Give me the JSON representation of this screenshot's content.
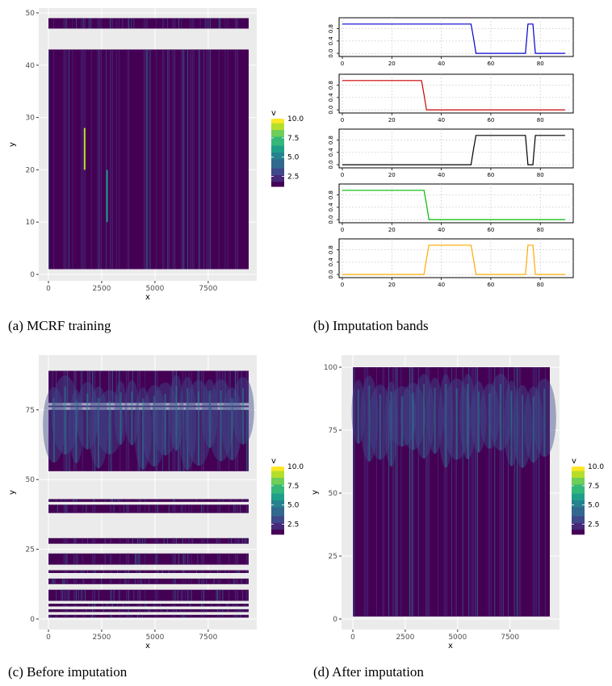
{
  "captions": {
    "a": "(a) MCRF training",
    "b": "(b) Imputation bands",
    "c": "(c) Before imputation",
    "d": "(d) After imputation"
  },
  "colors": {
    "viridis": [
      "#440154",
      "#482878",
      "#3e4989",
      "#31688e",
      "#26828e",
      "#1f9e89",
      "#35b779",
      "#6ece58",
      "#b5de2b",
      "#fde725"
    ],
    "panel_bg": "#ebebeb",
    "band_colors": [
      "#0000cc",
      "#cc0000",
      "#000000",
      "#00bb00",
      "#ffaa00"
    ]
  },
  "chart_data": [
    {
      "id": "a",
      "type": "heatmap",
      "xlabel": "x",
      "ylabel": "y",
      "xlim": [
        0,
        9400
      ],
      "ylim": [
        0,
        50
      ],
      "x_ticks": [
        0,
        2500,
        5000,
        7500
      ],
      "x_tick_labels": [
        "0",
        "2500",
        "5000",
        "7500"
      ],
      "y_ticks": [
        0,
        10,
        20,
        30,
        40,
        50
      ],
      "y_tick_labels": [
        "0",
        "10",
        "20",
        "30",
        "40",
        "50"
      ],
      "y_bands": [
        [
          1,
          43
        ],
        [
          47,
          49
        ]
      ],
      "hotspots": [
        {
          "x": 1700,
          "y0": 20,
          "y1": 28,
          "v": 9.5
        },
        {
          "x": 2750,
          "y0": 10,
          "y1": 20,
          "v": 6
        }
      ],
      "legend": {
        "title": "v",
        "labels": [
          "10.0",
          "7.5",
          "5.0",
          "2.5"
        ],
        "values": [
          10,
          7.5,
          5,
          2.5
        ],
        "range": [
          1.2,
          10
        ]
      }
    },
    {
      "id": "b",
      "type": "line",
      "xlim": [
        -2,
        92
      ],
      "x_ticks": [
        0,
        20,
        40,
        60,
        80
      ],
      "x_tick_labels": [
        "0",
        "20",
        "40",
        "60",
        "80"
      ],
      "y_ticks": [
        0,
        0.4,
        0.8
      ],
      "y_tick_labels": [
        "0.0",
        "0.4",
        "0.8"
      ],
      "ylim": [
        -0.05,
        1.05
      ],
      "series": [
        {
          "values": [
            [
              0,
              0.95
            ],
            [
              52,
              0.95
            ],
            [
              53,
              0.5
            ],
            [
              54,
              0
            ],
            [
              74,
              0
            ],
            [
              75,
              0.95
            ],
            [
              77,
              0.95
            ],
            [
              78,
              0
            ],
            [
              90,
              0
            ]
          ]
        },
        {
          "values": [
            [
              0,
              0.95
            ],
            [
              32,
              0.95
            ],
            [
              33,
              0.5
            ],
            [
              34,
              0
            ],
            [
              90,
              0
            ]
          ]
        },
        {
          "values": [
            [
              0,
              0
            ],
            [
              52,
              0
            ],
            [
              53,
              0.5
            ],
            [
              54,
              0.95
            ],
            [
              74,
              0.95
            ],
            [
              75,
              0
            ],
            [
              77,
              0
            ],
            [
              78,
              0.95
            ],
            [
              90,
              0.95
            ]
          ]
        },
        {
          "values": [
            [
              0,
              0.95
            ],
            [
              33,
              0.95
            ],
            [
              34,
              0.5
            ],
            [
              35,
              0
            ],
            [
              90,
              0
            ]
          ]
        },
        {
          "values": [
            [
              0,
              0
            ],
            [
              33,
              0
            ],
            [
              34,
              0.5
            ],
            [
              35,
              0.95
            ],
            [
              52,
              0.95
            ],
            [
              53,
              0.5
            ],
            [
              54,
              0
            ],
            [
              74,
              0
            ],
            [
              75,
              0.95
            ],
            [
              77,
              0.95
            ],
            [
              78,
              0
            ],
            [
              90,
              0
            ]
          ]
        }
      ]
    },
    {
      "id": "c",
      "type": "heatmap",
      "xlabel": "x",
      "ylabel": "y",
      "xlim": [
        0,
        9400
      ],
      "ylim": [
        0,
        90
      ],
      "x_ticks": [
        0,
        2500,
        5000,
        7500
      ],
      "x_tick_labels": [
        "0",
        "2500",
        "5000",
        "7500"
      ],
      "y_ticks": [
        0,
        25,
        50,
        75
      ],
      "y_tick_labels": [
        "0",
        "25",
        "50",
        "75"
      ],
      "y_bands": [
        [
          0.5,
          1.5
        ],
        [
          2.5,
          3.5
        ],
        [
          4.5,
          5.5
        ],
        [
          6.5,
          10.5
        ],
        [
          12.5,
          14.5
        ],
        [
          16.5,
          17.5
        ],
        [
          19.5,
          23.5
        ],
        [
          27,
          29
        ],
        [
          38,
          41
        ],
        [
          42,
          43
        ],
        [
          53,
          75
        ],
        [
          76,
          76.5
        ],
        [
          77.5,
          89
        ]
      ],
      "legend": {
        "title": "v",
        "labels": [
          "10.0",
          "7.5",
          "5.0",
          "2.5"
        ],
        "values": [
          10,
          7.5,
          5,
          2.5
        ],
        "range": [
          1.2,
          10
        ]
      }
    },
    {
      "id": "d",
      "type": "heatmap",
      "xlabel": "x",
      "ylabel": "y",
      "xlim": [
        0,
        9400
      ],
      "ylim": [
        0,
        100
      ],
      "x_ticks": [
        0,
        2500,
        5000,
        7500
      ],
      "x_tick_labels": [
        "0",
        "2500",
        "5000",
        "7500"
      ],
      "y_ticks": [
        0,
        25,
        50,
        75,
        100
      ],
      "y_tick_labels": [
        "0",
        "25",
        "50",
        "75",
        "100"
      ],
      "y_bands": [
        [
          1,
          100
        ]
      ],
      "legend": {
        "title": "v",
        "labels": [
          "10.0",
          "7.5",
          "5.0",
          "2.5"
        ],
        "values": [
          10,
          7.5,
          5,
          2.5
        ],
        "range": [
          1.2,
          10
        ]
      }
    }
  ]
}
